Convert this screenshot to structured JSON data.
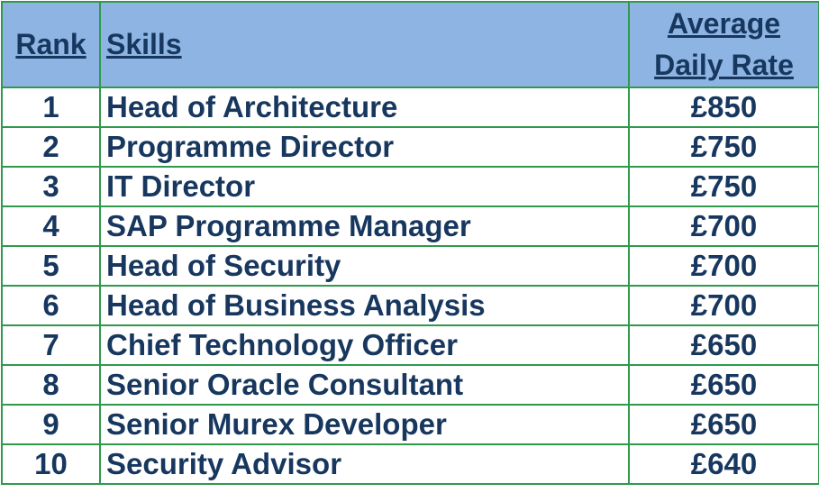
{
  "table": {
    "header": [
      "Rank",
      "Skills",
      "Average Daily Rate"
    ],
    "rows": [
      [
        "1",
        "Head of Architecture",
        "£850"
      ],
      [
        "2",
        "Programme Director",
        "£750"
      ],
      [
        "3",
        "IT Director",
        "£750"
      ],
      [
        "4",
        "SAP Programme Manager",
        "£700"
      ],
      [
        "5",
        "Head of Security",
        "£700"
      ],
      [
        "6",
        "Head of Business Analysis",
        "£700"
      ],
      [
        "7",
        "Chief Technology Officer",
        "£650"
      ],
      [
        "8",
        "Senior Oracle Consultant",
        "£650"
      ],
      [
        "9",
        "Senior Murex Developer",
        "£650"
      ],
      [
        "10",
        "Security Advisor",
        "£640"
      ]
    ]
  }
}
